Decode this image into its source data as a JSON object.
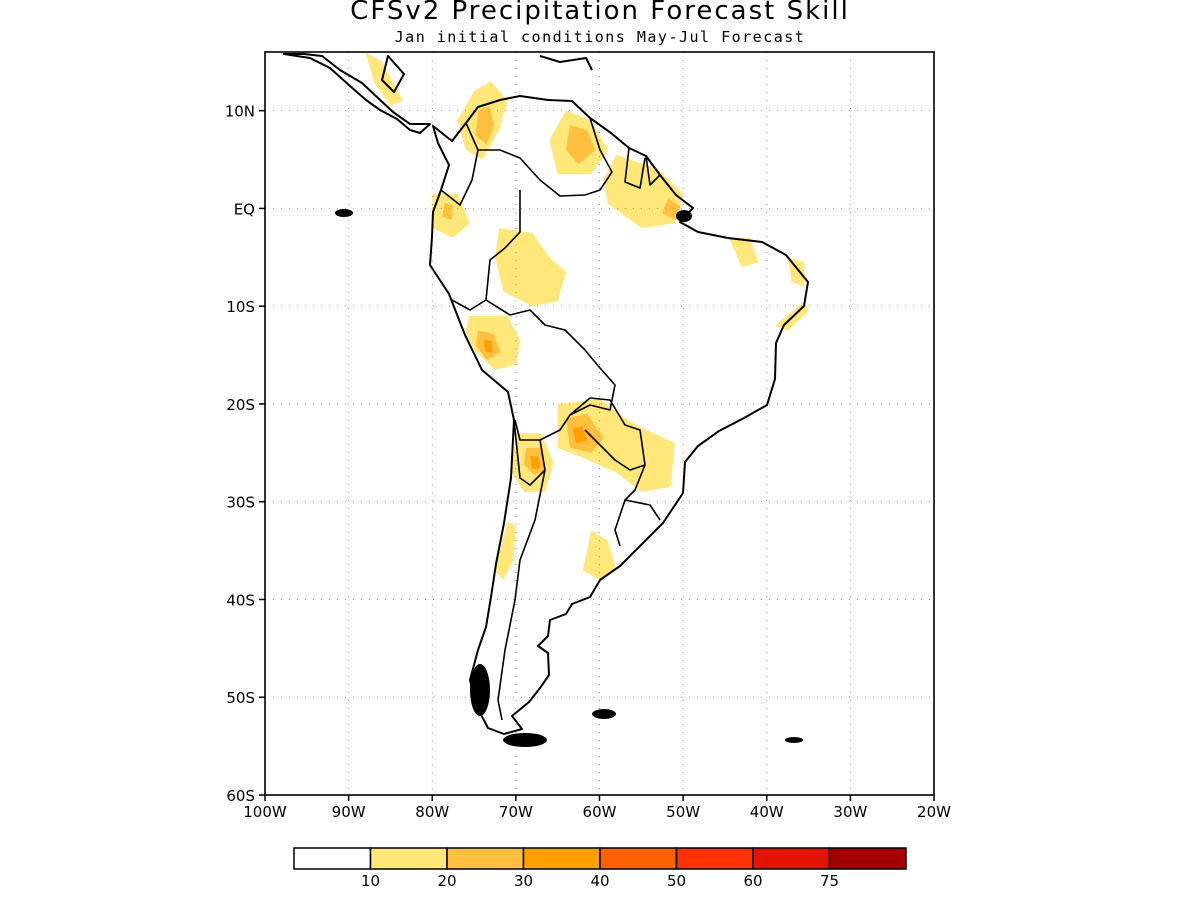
{
  "title": "CFSv2 Precipitation Forecast Skill",
  "subtitle": "Jan initial conditions   May-Jul Forecast",
  "map": {
    "lon_range": [
      -100,
      -20
    ],
    "lat_range": [
      -60,
      16
    ],
    "lat_ticks": [
      {
        "value": 10,
        "label": "10N"
      },
      {
        "value": 0,
        "label": "EQ"
      },
      {
        "value": -10,
        "label": "10S"
      },
      {
        "value": -20,
        "label": "20S"
      },
      {
        "value": -30,
        "label": "30S"
      },
      {
        "value": -40,
        "label": "40S"
      },
      {
        "value": -50,
        "label": "50S"
      },
      {
        "value": -60,
        "label": "60S"
      }
    ],
    "lon_ticks": [
      {
        "value": -100,
        "label": "100W"
      },
      {
        "value": -90,
        "label": "90W"
      },
      {
        "value": -80,
        "label": "80W"
      },
      {
        "value": -70,
        "label": "70W"
      },
      {
        "value": -60,
        "label": "60W"
      },
      {
        "value": -50,
        "label": "50W"
      },
      {
        "value": -40,
        "label": "40W"
      },
      {
        "value": -30,
        "label": "30W"
      },
      {
        "value": -20,
        "label": "20W"
      }
    ],
    "grid": "dotted"
  },
  "colorbar": {
    "colors": [
      "#ffffff",
      "#ffe77a",
      "#ffc040",
      "#ffa000",
      "#ff6000",
      "#ff3200",
      "#e11400",
      "#a50000"
    ],
    "labels": [
      "10",
      "20",
      "30",
      "40",
      "50",
      "60",
      "75"
    ]
  },
  "skill_regions": [
    {
      "name": "colombia-north",
      "level": 1,
      "pts": [
        [
          -75,
          12
        ],
        [
          -73,
          13
        ],
        [
          -71,
          11
        ],
        [
          -72,
          8
        ],
        [
          -74,
          5
        ],
        [
          -76,
          6
        ],
        [
          -77,
          9
        ]
      ]
    },
    {
      "name": "colombia-core",
      "level": 2,
      "pts": [
        [
          -74.5,
          10
        ],
        [
          -73.2,
          10.5
        ],
        [
          -72.6,
          8.5
        ],
        [
          -73.5,
          6.5
        ],
        [
          -74.8,
          7.5
        ]
      ]
    },
    {
      "name": "venezuela",
      "level": 1,
      "pts": [
        [
          -64,
          10
        ],
        [
          -61,
          9
        ],
        [
          -59,
          6
        ],
        [
          -61,
          3.5
        ],
        [
          -65,
          3.5
        ],
        [
          -66,
          7
        ]
      ]
    },
    {
      "name": "venezuela-core",
      "level": 2,
      "pts": [
        [
          -63.5,
          8.5
        ],
        [
          -61.5,
          8
        ],
        [
          -60.5,
          6
        ],
        [
          -62.5,
          4.5
        ],
        [
          -64,
          6
        ]
      ]
    },
    {
      "name": "guianas-amapa",
      "level": 1,
      "pts": [
        [
          -58,
          5.5
        ],
        [
          -53,
          4
        ],
        [
          -50,
          1.5
        ],
        [
          -51,
          -1.5
        ],
        [
          -55,
          -2
        ],
        [
          -59,
          0.5
        ],
        [
          -59.5,
          3
        ]
      ]
    },
    {
      "name": "amapa-core",
      "level": 2,
      "pts": [
        [
          -51.8,
          1
        ],
        [
          -50.3,
          0.2
        ],
        [
          -50.9,
          -1.2
        ],
        [
          -52.5,
          -0.5
        ]
      ]
    },
    {
      "name": "ecuador",
      "level": 1,
      "pts": [
        [
          -80,
          1.5
        ],
        [
          -77,
          1.5
        ],
        [
          -75.5,
          -1.5
        ],
        [
          -77.5,
          -3
        ],
        [
          -80,
          -2
        ]
      ]
    },
    {
      "name": "ecuador-core",
      "level": 2,
      "pts": [
        [
          -78.5,
          0.6
        ],
        [
          -77.5,
          0.3
        ],
        [
          -77.7,
          -1.2
        ],
        [
          -78.8,
          -0.8
        ]
      ]
    },
    {
      "name": "western-amazon",
      "level": 1,
      "pts": [
        [
          -72,
          -2
        ],
        [
          -68,
          -2.5
        ],
        [
          -66,
          -5
        ],
        [
          -64,
          -6.5
        ],
        [
          -65,
          -9.5
        ],
        [
          -68,
          -10
        ],
        [
          -71.5,
          -8.5
        ],
        [
          -72.5,
          -5
        ]
      ]
    },
    {
      "name": "peru-south",
      "level": 1,
      "pts": [
        [
          -75.5,
          -11
        ],
        [
          -71,
          -11
        ],
        [
          -69.5,
          -13.5
        ],
        [
          -70,
          -16
        ],
        [
          -72.5,
          -16.5
        ],
        [
          -75,
          -14.5
        ],
        [
          -76,
          -12.5
        ]
      ]
    },
    {
      "name": "peru-south-core",
      "level": 2,
      "pts": [
        [
          -74.5,
          -12.5
        ],
        [
          -72.7,
          -12.8
        ],
        [
          -71.8,
          -14.7
        ],
        [
          -73.5,
          -15.5
        ],
        [
          -74.8,
          -14
        ]
      ]
    },
    {
      "name": "peru-south-max",
      "level": 3,
      "pts": [
        [
          -73.8,
          -13.4
        ],
        [
          -72.9,
          -13.6
        ],
        [
          -72.8,
          -14.8
        ],
        [
          -73.7,
          -14.6
        ]
      ]
    },
    {
      "name": "paraguay",
      "level": 1,
      "pts": [
        [
          -65,
          -20
        ],
        [
          -60,
          -19.5
        ],
        [
          -56,
          -22
        ],
        [
          -51,
          -24
        ],
        [
          -51.5,
          -28.5
        ],
        [
          -55,
          -29
        ],
        [
          -58,
          -27
        ],
        [
          -62,
          -25.5
        ],
        [
          -65,
          -24.5
        ]
      ]
    },
    {
      "name": "paraguay-core",
      "level": 2,
      "pts": [
        [
          -64,
          -21.5
        ],
        [
          -61.5,
          -21
        ],
        [
          -59.5,
          -23.5
        ],
        [
          -61,
          -25
        ],
        [
          -63.5,
          -24.5
        ]
      ]
    },
    {
      "name": "paraguay-max",
      "level": 3,
      "pts": [
        [
          -63.2,
          -22.5
        ],
        [
          -62,
          -22.3
        ],
        [
          -61.5,
          -23.8
        ],
        [
          -62.8,
          -24
        ]
      ]
    },
    {
      "name": "nw-argentina",
      "level": 1,
      "pts": [
        [
          -70,
          -23
        ],
        [
          -67,
          -23
        ],
        [
          -65.5,
          -26
        ],
        [
          -66.5,
          -29
        ],
        [
          -69,
          -29
        ],
        [
          -70.5,
          -27
        ]
      ]
    },
    {
      "name": "nw-argentina-core",
      "level": 2,
      "pts": [
        [
          -68.8,
          -24.5
        ],
        [
          -67,
          -24.5
        ],
        [
          -66.5,
          -26.8
        ],
        [
          -67.8,
          -27.3
        ],
        [
          -69,
          -26.2
        ]
      ]
    },
    {
      "name": "nw-argentina-max",
      "level": 3,
      "pts": [
        [
          -68.3,
          -25.3
        ],
        [
          -67.3,
          -25.4
        ],
        [
          -67.2,
          -26.6
        ],
        [
          -68.1,
          -26.6
        ]
      ]
    },
    {
      "name": "chile-central",
      "level": 1,
      "pts": [
        [
          -71,
          -32
        ],
        [
          -70,
          -32.5
        ],
        [
          -70.3,
          -36
        ],
        [
          -71.5,
          -38
        ],
        [
          -72.5,
          -37
        ]
      ]
    },
    {
      "name": "argentina-pampa",
      "level": 1,
      "pts": [
        [
          -61,
          -33
        ],
        [
          -59,
          -34
        ],
        [
          -58,
          -37
        ],
        [
          -60,
          -38
        ],
        [
          -62,
          -37
        ]
      ]
    },
    {
      "name": "brazil-northeast-a",
      "level": 1,
      "pts": [
        [
          -44.5,
          -3
        ],
        [
          -42,
          -3
        ],
        [
          -41,
          -5.5
        ],
        [
          -43,
          -6
        ]
      ]
    },
    {
      "name": "brazil-northeast-b",
      "level": 1,
      "pts": [
        [
          -37.5,
          -5
        ],
        [
          -35.5,
          -5.5
        ],
        [
          -35.5,
          -8
        ],
        [
          -37,
          -7.5
        ]
      ]
    },
    {
      "name": "brazil-east-coast",
      "level": 1,
      "pts": [
        [
          -35.5,
          -9.5
        ],
        [
          -35,
          -10.5
        ],
        [
          -37.5,
          -12.5
        ],
        [
          -39,
          -12
        ]
      ]
    },
    {
      "name": "central-america",
      "level": 1,
      "pts": [
        [
          -88,
          16
        ],
        [
          -86,
          15
        ],
        [
          -83.5,
          11
        ],
        [
          -85,
          10.5
        ],
        [
          -87,
          13
        ]
      ]
    }
  ]
}
